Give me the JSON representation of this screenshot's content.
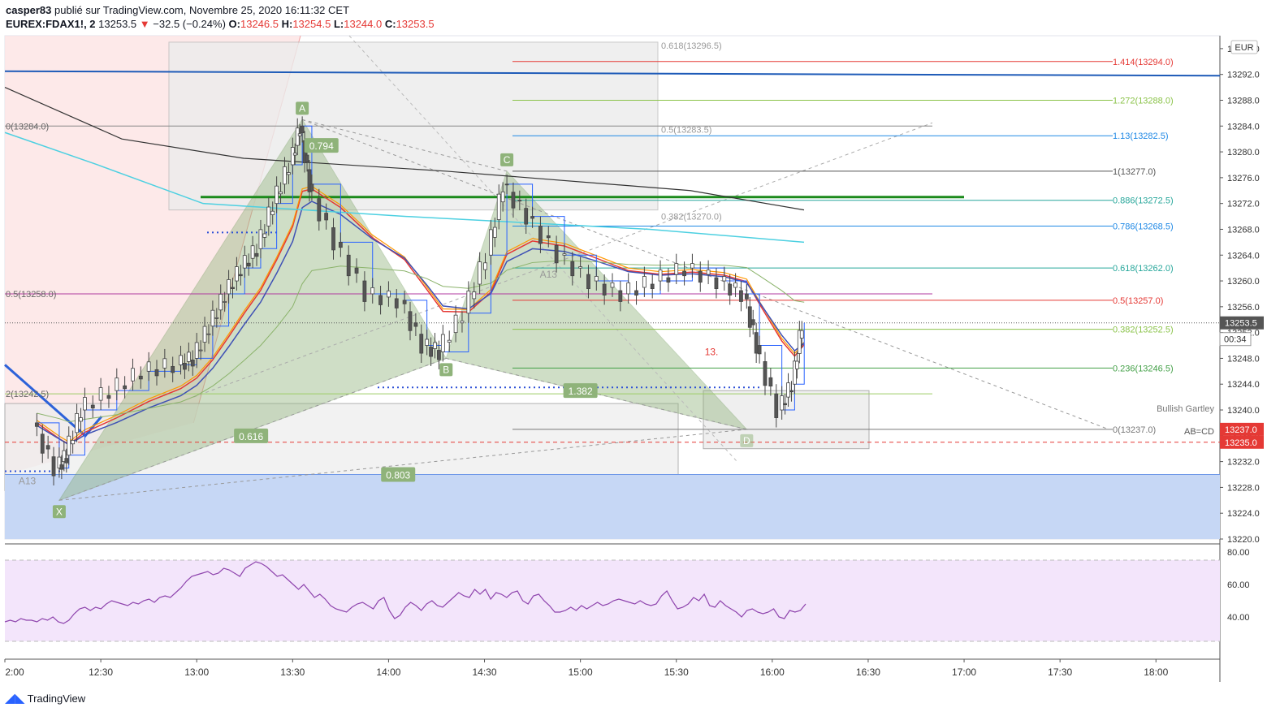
{
  "header": {
    "author": "casper83",
    "publish_text": "publié sur TradingView.com, Novembre 25, 2020 16:11:32 CET",
    "symbol": "EUREX:FDAX1!, 2",
    "last": "13253.5",
    "change": "−32.5 (−0.24%)",
    "o_label": "O:",
    "o": "13246.5",
    "h_label": "H:",
    "h": "13254.5",
    "l_label": "L:",
    "l": "13244.0",
    "c_label": "C:",
    "c": "13253.5"
  },
  "currency": "EUR",
  "footer": {
    "logo": "TradingView",
    "logo_icon": "tradingview-logo-icon"
  },
  "colors": {
    "up": "#26a69a",
    "down": "#ef5350",
    "pattern": "#8fb37a",
    "rsi": "#8e44ad",
    "support": "#6f98e8"
  },
  "chart_data": [
    {
      "type": "candlestick",
      "title": "",
      "price_range": [
        13220,
        13298
      ],
      "x_ticks": [
        "2:00",
        "12:30",
        "13:00",
        "13:30",
        "14:00",
        "14:30",
        "15:00",
        "15:30",
        "16:00",
        "16:30",
        "17:00",
        "17:30",
        "18:00"
      ],
      "y_ticks": [
        "13296.0",
        "13292.0",
        "13288.0",
        "13284.0",
        "13280.0",
        "13276.0",
        "13272.0",
        "13268.0",
        "13264.0",
        "13260.0",
        "13256.0",
        "13252.0",
        "13248.0",
        "13244.0",
        "13240.0",
        "13236.0",
        "13232.0",
        "13228.0",
        "13224.0",
        "13220.0"
      ],
      "last_price": {
        "label": "13253.5",
        "countdown": "00:34"
      },
      "price_tags": [
        {
          "label": "13237.0",
          "price": 13237,
          "color": "#e53935"
        },
        {
          "label": "13235.0",
          "price": 13235,
          "color": "#e53935"
        }
      ],
      "price_path": [
        [
          "12:10",
          13238
        ],
        [
          "12:17",
          13231
        ],
        [
          "12:20",
          13233
        ],
        [
          "12:25",
          13240
        ],
        [
          "12:35",
          13243
        ],
        [
          "12:45",
          13246
        ],
        [
          "12:55",
          13247
        ],
        [
          "13:00",
          13248
        ],
        [
          "13:05",
          13253
        ],
        [
          "13:10",
          13258
        ],
        [
          "13:15",
          13262
        ],
        [
          "13:20",
          13265
        ],
        [
          "13:25",
          13272
        ],
        [
          "13:30",
          13278
        ],
        [
          "13:33",
          13284
        ],
        [
          "13:36",
          13275
        ],
        [
          "13:45",
          13266
        ],
        [
          "13:55",
          13258
        ],
        [
          "14:05",
          13257
        ],
        [
          "14:12",
          13250
        ],
        [
          "14:17",
          13249
        ],
        [
          "14:25",
          13255
        ],
        [
          "14:32",
          13264
        ],
        [
          "14:37",
          13275
        ],
        [
          "14:45",
          13270
        ],
        [
          "14:55",
          13264
        ],
        [
          "15:05",
          13260
        ],
        [
          "15:15",
          13258
        ],
        [
          "15:25",
          13260
        ],
        [
          "15:35",
          13262
        ],
        [
          "15:45",
          13260
        ],
        [
          "15:52",
          13258
        ],
        [
          "15:56",
          13250
        ],
        [
          "16:03",
          13240
        ],
        [
          "16:07",
          13244
        ],
        [
          "16:10",
          13253.5
        ]
      ],
      "fib_levels": [
        {
          "label": "1.414(13294.0)",
          "price": 13294.0,
          "color": "#e53935"
        },
        {
          "label": "1.272(13288.0)",
          "price": 13288.0,
          "color": "#8bc34a"
        },
        {
          "label": "1.13(13282.5)",
          "price": 13282.5,
          "color": "#1e88e5"
        },
        {
          "label": "1(13277.0)",
          "price": 13277.0,
          "color": "#555555"
        },
        {
          "label": "0.886(13272.5)",
          "price": 13272.5,
          "color": "#26a69a"
        },
        {
          "label": "0.786(13268.5)",
          "price": 13268.5,
          "color": "#1e88e5"
        },
        {
          "label": "0.618(13262.0)",
          "price": 13262.0,
          "color": "#26a69a"
        },
        {
          "label": "0.5(13257.0)",
          "price": 13257.0,
          "color": "#e53935"
        },
        {
          "label": "0.382(13252.5)",
          "price": 13252.5,
          "color": "#8bc34a"
        },
        {
          "label": "0.236(13246.5)",
          "price": 13246.5,
          "color": "#43a047"
        },
        {
          "label": "0(13237.0)",
          "price": 13237.0,
          "color": "#777777"
        }
      ],
      "left_fib_labels": [
        {
          "label": "0(13284.0)",
          "price": 13284.0
        },
        {
          "label": "0.5(13258.0)",
          "price": 13258.0
        },
        {
          "label": "2(13242.5)",
          "price": 13242.5
        }
      ],
      "box_fib_labels": [
        {
          "label": "0.618(13296.5)",
          "price": 13296.5
        },
        {
          "label": "0.5(13283.5)",
          "price": 13283.5
        },
        {
          "label": "0.382(13270.0)",
          "price": 13270.0
        }
      ],
      "pattern": {
        "name": "Bullish Gartley",
        "sub": "AB=CD",
        "points": [
          {
            "label": "X",
            "time": "12:17",
            "price": 13226
          },
          {
            "label": "A",
            "time": "13:33",
            "price": 13285
          },
          {
            "label": "B",
            "time": "14:18",
            "price": 13248
          },
          {
            "label": "C",
            "time": "14:37",
            "price": 13277
          },
          {
            "label": "D",
            "time": "15:52",
            "price": 13237
          }
        ],
        "ratios": [
          {
            "label": "0.794",
            "time": "13:39",
            "price": 13281
          },
          {
            "label": "0.616",
            "time": "13:17",
            "price": 13236
          },
          {
            "label": "0.803",
            "time": "14:03",
            "price": 13230
          },
          {
            "label": "1.382",
            "time": "15:00",
            "price": 13243
          }
        ]
      },
      "annotations": [
        {
          "label": "A13",
          "time": "12:07",
          "price": 13228.5
        },
        {
          "label": "A13",
          "time": "14:50",
          "price": 13260.5
        },
        {
          "label": "13.",
          "time": "15:41",
          "price": 13248.5
        }
      ]
    },
    {
      "type": "line",
      "title": "",
      "y_range": [
        20,
        80
      ],
      "y_ticks": [
        "80.00",
        "60.00",
        "40.00"
      ],
      "bands": [
        75,
        25
      ],
      "values": [
        37,
        38,
        37,
        39,
        38,
        38,
        37,
        39,
        38,
        40,
        37,
        36,
        38,
        42,
        45,
        46,
        44,
        46,
        45,
        48,
        50,
        49,
        48,
        47,
        49,
        48,
        50,
        51,
        49,
        52,
        53,
        52,
        55,
        58,
        62,
        65,
        66,
        67,
        68,
        66,
        67,
        70,
        69,
        67,
        65,
        70,
        72,
        74,
        73,
        71,
        68,
        65,
        66,
        63,
        60,
        57,
        60,
        56,
        52,
        54,
        51,
        47,
        45,
        44,
        43,
        46,
        48,
        49,
        47,
        45,
        50,
        52,
        44,
        39,
        41,
        46,
        49,
        47,
        44,
        48,
        50,
        47,
        46,
        49,
        52,
        55,
        53,
        52,
        57,
        54,
        57,
        51,
        55,
        54,
        52,
        55,
        56,
        50,
        48,
        53,
        54,
        50,
        47,
        43,
        43,
        44,
        46,
        44,
        47,
        45,
        47,
        49,
        47,
        48,
        50,
        51,
        50,
        49,
        48,
        50,
        48,
        47,
        48,
        53,
        56,
        50,
        45,
        46,
        48,
        52,
        50,
        54,
        47,
        46,
        50,
        47,
        45,
        43,
        40,
        44,
        45,
        43,
        42,
        43,
        45,
        40,
        39,
        44,
        43,
        44,
        48
      ]
    }
  ]
}
